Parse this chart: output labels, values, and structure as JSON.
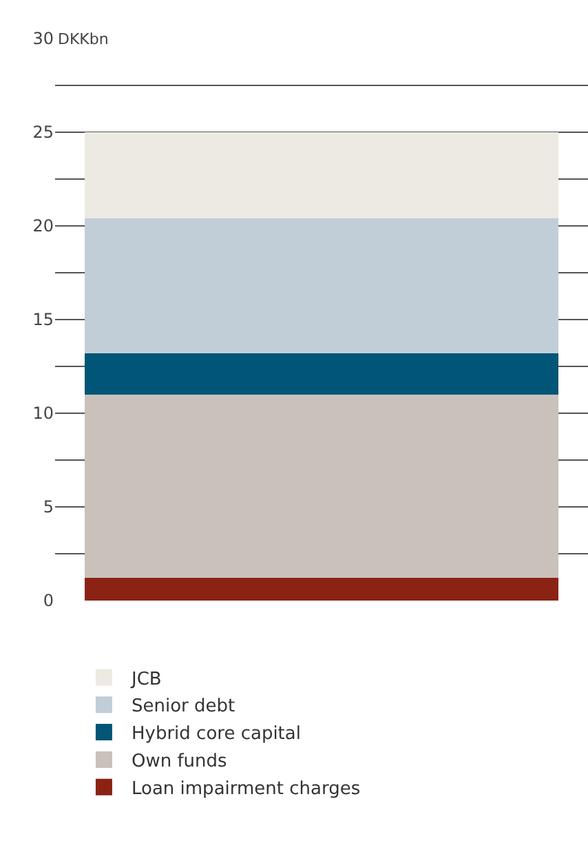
{
  "chart_data": {
    "type": "bar",
    "stacked": true,
    "ylabel": "DKKbn",
    "categories": [
      null
    ],
    "series": [
      {
        "name": "Loan impairment charges",
        "color": "#8b2315",
        "values": [
          1.2
        ]
      },
      {
        "name": "Own funds",
        "color": "#c9c1ba",
        "values": [
          9.8
        ]
      },
      {
        "name": "Hybrid core capital",
        "color": "#015576",
        "values": [
          2.2
        ]
      },
      {
        "name": "Senior debt",
        "color": "#c1ced7",
        "values": [
          7.2
        ]
      },
      {
        "name": "JCB",
        "color": "#edeae3",
        "values": [
          4.6
        ]
      }
    ],
    "ylim": [
      0,
      30
    ],
    "yticks": [
      0,
      {
        "value": 2.5,
        "label": null
      },
      5,
      {
        "value": 7.5,
        "label": null
      },
      10,
      {
        "value": 12.5,
        "label": null
      },
      15,
      {
        "value": 17.5,
        "label": null
      },
      20,
      {
        "value": 22.5,
        "label": null
      },
      25,
      {
        "value": 27.5,
        "label": null
      },
      30
    ],
    "grid": true,
    "legend": "bottom"
  }
}
